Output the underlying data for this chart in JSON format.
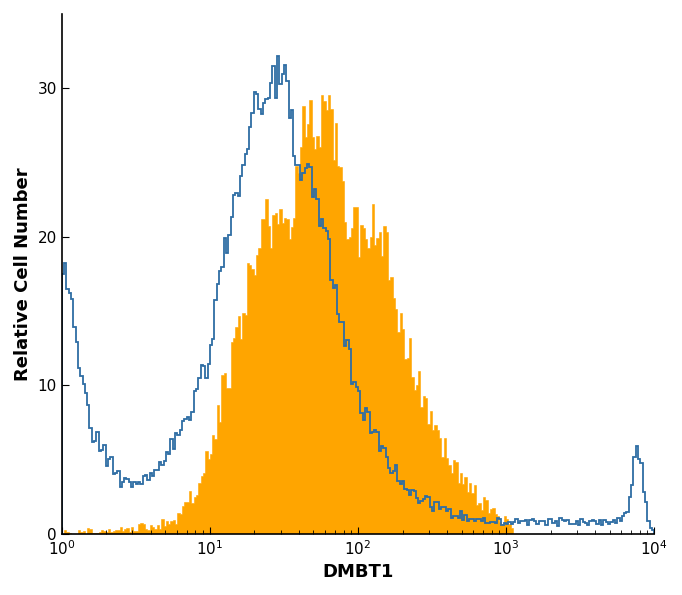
{
  "title": "",
  "xlabel": "DMBT1",
  "ylabel": "Relative Cell Number",
  "xlim_log": [
    0,
    4
  ],
  "ylim": [
    0,
    35
  ],
  "yticks": [
    0,
    10,
    20,
    30
  ],
  "background_color": "#ffffff",
  "filled_color": "#FFA500",
  "open_color": "#2e6da4",
  "open_linewidth": 1.3,
  "xlabel_fontsize": 13,
  "ylabel_fontsize": 13,
  "tick_fontsize": 11,
  "n_bins": 256
}
